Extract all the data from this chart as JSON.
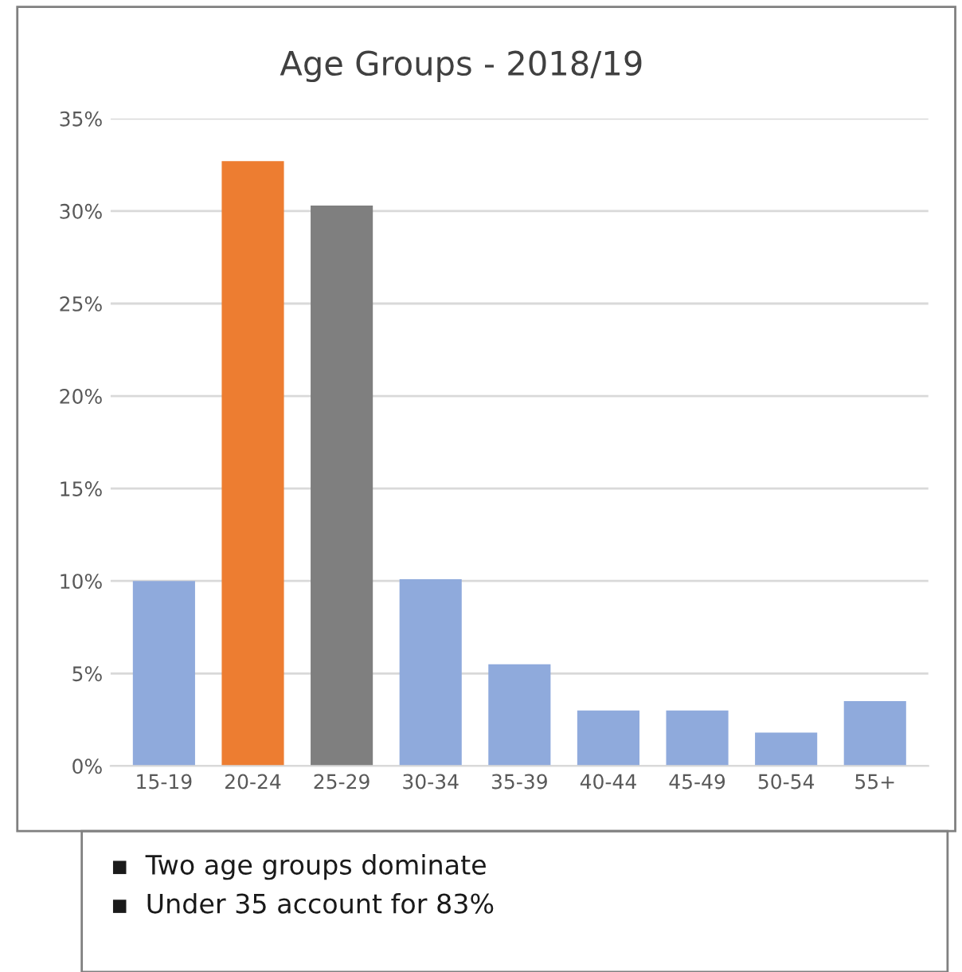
{
  "chart_data": {
    "type": "bar",
    "title": "Age Groups - 2018/19",
    "categories": [
      "15-19",
      "20-24",
      "25-29",
      "30-34",
      "35-39",
      "40-44",
      "45-49",
      "50-54",
      "55+"
    ],
    "values": [
      10.0,
      32.7,
      30.3,
      10.1,
      5.5,
      3.0,
      3.0,
      1.8,
      3.5
    ],
    "colors": [
      "#8faadc",
      "#ed7d31",
      "#7f7f7f",
      "#8faadc",
      "#8faadc",
      "#8faadc",
      "#8faadc",
      "#8faadc",
      "#8faadc"
    ],
    "ylim": [
      0,
      35
    ],
    "yticks": [
      {
        "value": 0,
        "label": "0%"
      },
      {
        "value": 5,
        "label": "5%"
      },
      {
        "value": 10,
        "label": "10%"
      },
      {
        "value": 15,
        "label": "15%"
      },
      {
        "value": 20,
        "label": "20%"
      },
      {
        "value": 25,
        "label": "25%"
      },
      {
        "value": 30,
        "label": "30%"
      },
      {
        "value": 35,
        "label": "35%"
      }
    ],
    "grid": "y",
    "annotations": [
      "▪  Two age groups dominate",
      "▪  Under 35 account for 83%"
    ]
  }
}
